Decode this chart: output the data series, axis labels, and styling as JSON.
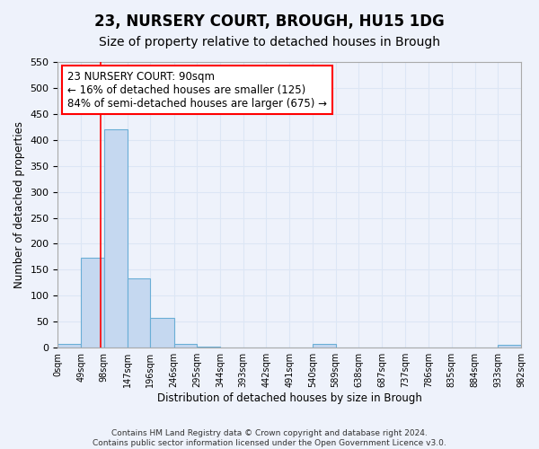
{
  "title": "23, NURSERY COURT, BROUGH, HU15 1DG",
  "subtitle": "Size of property relative to detached houses in Brough",
  "xlabel": "Distribution of detached houses by size in Brough",
  "ylabel": "Number of detached properties",
  "bin_edges": [
    0,
    49,
    98,
    147,
    196,
    246,
    295,
    344,
    393,
    442,
    491,
    540,
    589,
    638,
    687,
    737,
    786,
    835,
    884,
    933,
    982
  ],
  "bin_labels": [
    "0sqm",
    "49sqm",
    "98sqm",
    "147sqm",
    "196sqm",
    "246sqm",
    "295sqm",
    "344sqm",
    "393sqm",
    "442sqm",
    "491sqm",
    "540sqm",
    "589sqm",
    "638sqm",
    "687sqm",
    "737sqm",
    "786sqm",
    "835sqm",
    "884sqm",
    "933sqm",
    "982sqm"
  ],
  "bar_heights": [
    7,
    174,
    421,
    133,
    57,
    7,
    2,
    0,
    0,
    0,
    0,
    7,
    0,
    0,
    0,
    0,
    0,
    0,
    0,
    5
  ],
  "bar_color": "#c5d8f0",
  "bar_edge_color": "#6aaed6",
  "ylim": [
    0,
    550
  ],
  "yticks": [
    0,
    50,
    100,
    150,
    200,
    250,
    300,
    350,
    400,
    450,
    500,
    550
  ],
  "red_line_x": 90,
  "annotation_text": "23 NURSERY COURT: 90sqm\n← 16% of detached houses are smaller (125)\n84% of semi-detached houses are larger (675) →",
  "footer_line1": "Contains HM Land Registry data © Crown copyright and database right 2024.",
  "footer_line2": "Contains public sector information licensed under the Open Government Licence v3.0.",
  "bg_color": "#eef2fb",
  "grid_color": "#dce6f5",
  "title_fontsize": 12,
  "subtitle_fontsize": 10,
  "annotation_fontsize": 8.5,
  "footer_fontsize": 6.5
}
